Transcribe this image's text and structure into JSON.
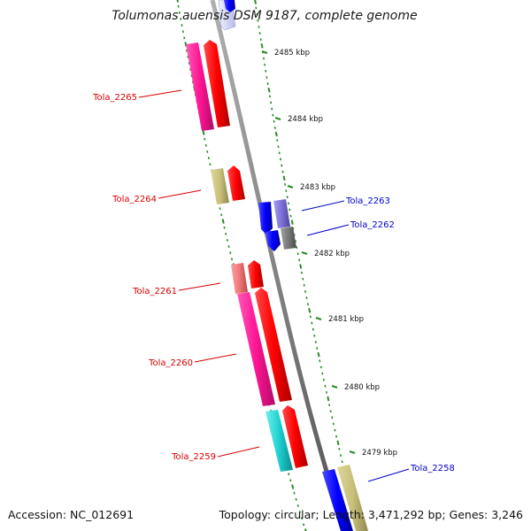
{
  "title": "Tolumonas auensis DSM 9187, complete genome",
  "footer": {
    "accession": "Accession: NC_012691",
    "summary": "Topology: circular; Length: 3,471,292 bp; Genes: 3,246"
  },
  "ticks": [
    "2485 kbp",
    "2484 kbp",
    "2483 kbp",
    "2482 kbp",
    "2481 kbp",
    "2480 kbp",
    "2479 kbp"
  ],
  "genes": [
    {
      "label": "Tola_2265",
      "strand": "left",
      "color": "#d60000"
    },
    {
      "label": "Tola_2264",
      "strand": "left",
      "color": "#d60000"
    },
    {
      "label": "Tola_2261",
      "strand": "left",
      "color": "#d60000"
    },
    {
      "label": "Tola_2260",
      "strand": "left",
      "color": "#d60000"
    },
    {
      "label": "Tola_2259",
      "strand": "left",
      "color": "#d60000"
    },
    {
      "label": "Tola_2263",
      "strand": "right",
      "color": "#0000cc"
    },
    {
      "label": "Tola_2262",
      "strand": "right",
      "color": "#0000cc"
    },
    {
      "label": "Tola_2258",
      "strand": "right",
      "color": "#0000cc"
    }
  ],
  "colors": {
    "backbone": "#8a8a8a",
    "tick": "#2a8a2a",
    "cds_forward": "#ff0000",
    "cds_reverse": "#0000ff",
    "hot_pink": "#ff1493",
    "khaki": "#c8c07a",
    "light_coral": "#f07878",
    "turquoise": "#1ecfcf",
    "slate_blue": "#7b6fd6",
    "gray": "#777777"
  }
}
